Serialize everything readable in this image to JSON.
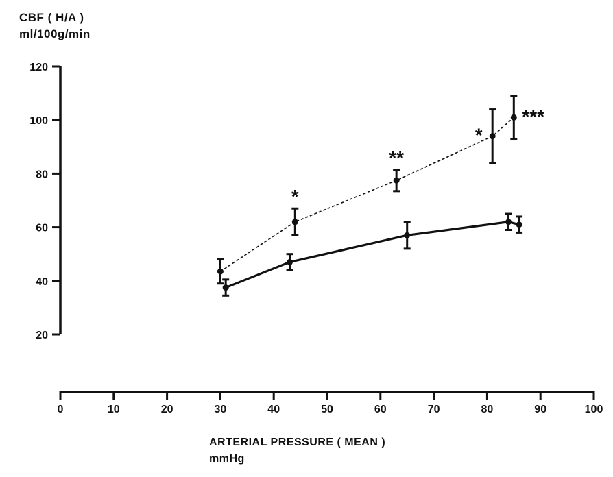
{
  "chart_data": {
    "type": "line",
    "ylabel": [
      "CBF ( H/A )",
      "ml/100g/min"
    ],
    "xlabel": [
      "ARTERIAL PRESSURE ( MEAN )",
      "mmHg"
    ],
    "xlim": [
      0,
      100
    ],
    "ylim": [
      20,
      120
    ],
    "x_ticks": [
      0,
      10,
      20,
      30,
      40,
      50,
      60,
      70,
      80,
      90,
      100
    ],
    "y_ticks": [
      20,
      40,
      60,
      80,
      100,
      120
    ],
    "grid": false,
    "series": [
      {
        "style": "dashed",
        "points": [
          {
            "x": 30,
            "y": 43.5,
            "err": 4.5
          },
          {
            "x": 44,
            "y": 62,
            "err": 5
          },
          {
            "x": 63,
            "y": 77.5,
            "err": 4
          },
          {
            "x": 81,
            "y": 94,
            "err": 10
          },
          {
            "x": 85,
            "y": 101,
            "err": 8
          }
        ],
        "annotations": [
          {
            "x": 44,
            "text": "*"
          },
          {
            "x": 63,
            "text": "**"
          },
          {
            "x": 81,
            "text": "*"
          },
          {
            "x": 85,
            "text": "***"
          }
        ]
      },
      {
        "style": "solid",
        "points": [
          {
            "x": 31,
            "y": 37.5,
            "err": 3
          },
          {
            "x": 43,
            "y": 47,
            "err": 3
          },
          {
            "x": 65,
            "y": 57,
            "err": 5
          },
          {
            "x": 84,
            "y": 62,
            "err": 3
          },
          {
            "x": 86,
            "y": 61,
            "err": 3
          }
        ]
      }
    ]
  }
}
